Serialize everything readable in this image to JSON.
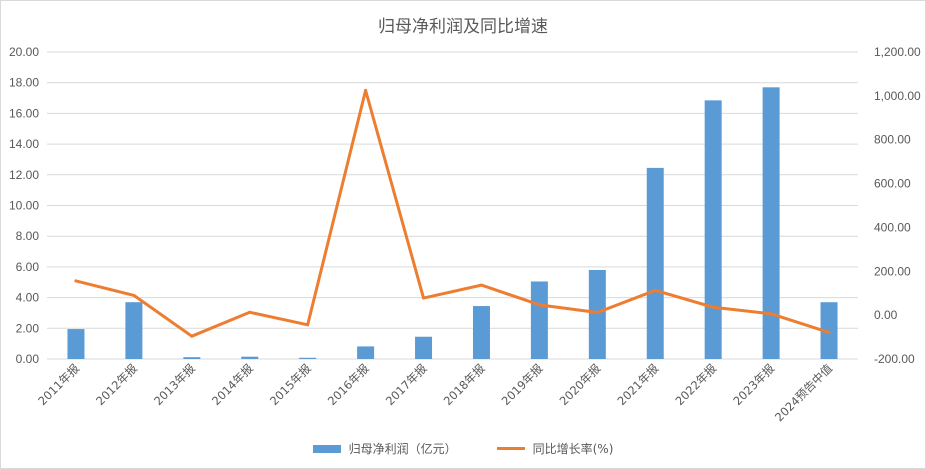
{
  "chart_data": {
    "type": "bar+line",
    "title": "归母净利润及同比增速",
    "categories": [
      "2011年报",
      "2012年报",
      "2013年报",
      "2014年报",
      "2015年报",
      "2016年报",
      "2017年报",
      "2018年报",
      "2019年报",
      "2020年报",
      "2021年报",
      "2022年报",
      "2023年报",
      "2024预告中值"
    ],
    "series": [
      {
        "name": "归母净利润（亿元）",
        "type": "bar",
        "axis": "left",
        "color": "#5B9BD5",
        "values": [
          1.95,
          3.7,
          0.12,
          0.15,
          0.08,
          0.82,
          1.45,
          3.45,
          5.05,
          5.8,
          12.45,
          16.85,
          17.7,
          3.7
        ]
      },
      {
        "name": "同比增长率(%)",
        "type": "line",
        "axis": "right",
        "color": "#ED7D31",
        "values": [
          156,
          90,
          -96,
          13,
          -44,
          1025,
          78,
          137,
          47,
          12,
          113,
          36,
          6,
          -79
        ]
      }
    ],
    "left_axis": {
      "min": 0,
      "max": 20,
      "step": 2,
      "tick_labels": [
        "0.00",
        "2.00",
        "4.00",
        "6.00",
        "8.00",
        "10.00",
        "12.00",
        "14.00",
        "16.00",
        "18.00",
        "20.00"
      ]
    },
    "right_axis": {
      "min": -200,
      "max": 1200,
      "step": 200,
      "tick_labels": [
        "-200.00",
        "0.00",
        "200.00",
        "400.00",
        "600.00",
        "800.00",
        "1,000.00",
        "1,200.00"
      ]
    },
    "grid": true,
    "legend_position": "bottom"
  }
}
